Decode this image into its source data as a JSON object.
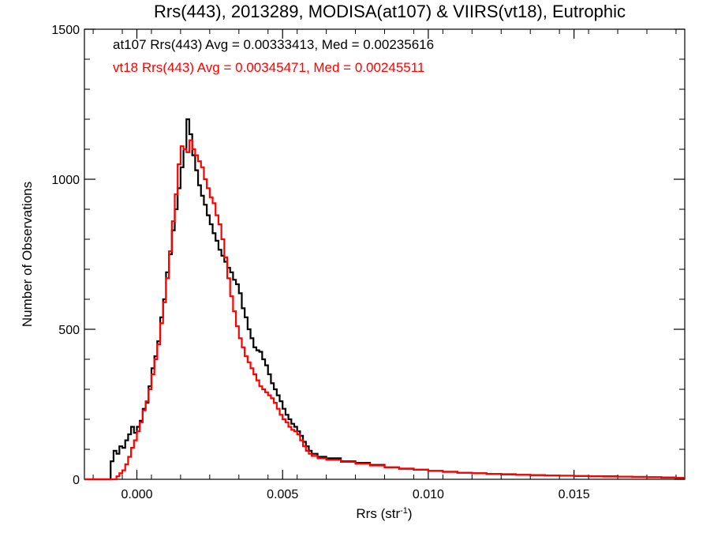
{
  "chart_data": {
    "type": "histogram",
    "title": "Rrs(443), 2013289, MODISA(at107) & VIIRS(vt18), Eutrophic",
    "xlabel_base": "Rrs (str",
    "xlabel_sup": "-1",
    "xlabel_close": ")",
    "ylabel": "Number of Observations",
    "xlim": [
      -0.0018,
      0.0188
    ],
    "ylim": [
      0,
      1500
    ],
    "xticks": [
      0.0,
      0.005,
      0.01,
      0.015
    ],
    "xtick_labels": [
      "0.000",
      "0.005",
      "0.010",
      "0.015"
    ],
    "yticks": [
      0,
      500,
      1000,
      1500
    ],
    "ytick_labels": [
      "0",
      "500",
      "1000",
      "1500"
    ],
    "grid": false,
    "annotations": [
      {
        "text": "at107 Rrs(443) Avg = 0.00333413, Med = 0.00235616",
        "color": "#000000"
      },
      {
        "text": "vt18 Rrs(443) Avg = 0.00345471, Med = 0.00245511",
        "color": "#ff0000"
      }
    ],
    "series": [
      {
        "color": "#000000",
        "points": [
          [
            -0.0018,
            0
          ],
          [
            -0.001,
            0
          ],
          [
            -0.0009,
            60
          ],
          [
            -0.0008,
            95
          ],
          [
            -0.0007,
            85
          ],
          [
            -0.0006,
            110
          ],
          [
            -0.0005,
            105
          ],
          [
            -0.0004,
            130
          ],
          [
            -0.0003,
            150
          ],
          [
            -0.0002,
            175
          ],
          [
            -0.0001,
            155
          ],
          [
            0.0,
            175
          ],
          [
            0.0001,
            195
          ],
          [
            0.0002,
            235
          ],
          [
            0.0003,
            255
          ],
          [
            0.0004,
            310
          ],
          [
            0.0005,
            370
          ],
          [
            0.0006,
            410
          ],
          [
            0.0007,
            460
          ],
          [
            0.0008,
            540
          ],
          [
            0.0009,
            600
          ],
          [
            0.001,
            690
          ],
          [
            0.0011,
            750
          ],
          [
            0.0012,
            830
          ],
          [
            0.0013,
            900
          ],
          [
            0.0014,
            970
          ],
          [
            0.0015,
            1040
          ],
          [
            0.0016,
            1100
          ],
          [
            0.0017,
            1200
          ],
          [
            0.0018,
            1150
          ],
          [
            0.0019,
            1080
          ],
          [
            0.002,
            1030
          ],
          [
            0.0021,
            980
          ],
          [
            0.0022,
            945
          ],
          [
            0.0023,
            915
          ],
          [
            0.0024,
            880
          ],
          [
            0.0025,
            850
          ],
          [
            0.0026,
            820
          ],
          [
            0.0027,
            795
          ],
          [
            0.0028,
            765
          ],
          [
            0.0029,
            745
          ],
          [
            0.003,
            725
          ],
          [
            0.0031,
            705
          ],
          [
            0.0032,
            690
          ],
          [
            0.0033,
            665
          ],
          [
            0.0034,
            650
          ],
          [
            0.0035,
            620
          ],
          [
            0.0036,
            570
          ],
          [
            0.0037,
            540
          ],
          [
            0.0038,
            500
          ],
          [
            0.0039,
            470
          ],
          [
            0.004,
            440
          ],
          [
            0.0041,
            430
          ],
          [
            0.0042,
            425
          ],
          [
            0.0043,
            400
          ],
          [
            0.0044,
            380
          ],
          [
            0.0045,
            350
          ],
          [
            0.0046,
            320
          ],
          [
            0.0047,
            300
          ],
          [
            0.0048,
            280
          ],
          [
            0.0049,
            260
          ],
          [
            0.005,
            235
          ],
          [
            0.0051,
            215
          ],
          [
            0.0052,
            200
          ],
          [
            0.0053,
            185
          ],
          [
            0.0054,
            175
          ],
          [
            0.0055,
            160
          ],
          [
            0.0056,
            145
          ],
          [
            0.0057,
            125
          ],
          [
            0.0058,
            110
          ],
          [
            0.0059,
            95
          ],
          [
            0.006,
            85
          ],
          [
            0.0062,
            75
          ],
          [
            0.0065,
            70
          ],
          [
            0.007,
            60
          ],
          [
            0.0075,
            55
          ],
          [
            0.008,
            48
          ],
          [
            0.0085,
            40
          ],
          [
            0.009,
            35
          ],
          [
            0.0095,
            32
          ],
          [
            0.01,
            28
          ],
          [
            0.0105,
            25
          ],
          [
            0.011,
            22
          ],
          [
            0.0115,
            20
          ],
          [
            0.012,
            18
          ],
          [
            0.0125,
            17
          ],
          [
            0.013,
            15
          ],
          [
            0.0135,
            14
          ],
          [
            0.014,
            13
          ],
          [
            0.0145,
            12
          ],
          [
            0.015,
            11
          ],
          [
            0.0155,
            10
          ],
          [
            0.016,
            10
          ],
          [
            0.0165,
            9
          ],
          [
            0.017,
            8
          ],
          [
            0.0175,
            7
          ],
          [
            0.018,
            6
          ],
          [
            0.0185,
            5
          ]
        ]
      },
      {
        "color": "#ff0000",
        "points": [
          [
            -0.0018,
            0
          ],
          [
            -0.0008,
            0
          ],
          [
            -0.0007,
            10
          ],
          [
            -0.0006,
            20
          ],
          [
            -0.0005,
            30
          ],
          [
            -0.0004,
            50
          ],
          [
            -0.0003,
            75
          ],
          [
            -0.0002,
            105
          ],
          [
            -0.0001,
            130
          ],
          [
            0.0,
            160
          ],
          [
            0.0001,
            190
          ],
          [
            0.0002,
            230
          ],
          [
            0.0003,
            260
          ],
          [
            0.0004,
            300
          ],
          [
            0.0005,
            350
          ],
          [
            0.0006,
            400
          ],
          [
            0.0007,
            450
          ],
          [
            0.0008,
            520
          ],
          [
            0.0009,
            590
          ],
          [
            0.001,
            670
          ],
          [
            0.0011,
            760
          ],
          [
            0.0012,
            860
          ],
          [
            0.0013,
            950
          ],
          [
            0.0014,
            1050
          ],
          [
            0.0015,
            1110
          ],
          [
            0.0016,
            1100
          ],
          [
            0.0017,
            1090
          ],
          [
            0.0018,
            1130
          ],
          [
            0.0019,
            1100
          ],
          [
            0.002,
            1080
          ],
          [
            0.0021,
            1060
          ],
          [
            0.0022,
            1040
          ],
          [
            0.0023,
            1000
          ],
          [
            0.0024,
            970
          ],
          [
            0.0025,
            940
          ],
          [
            0.0026,
            920
          ],
          [
            0.0027,
            880
          ],
          [
            0.0028,
            850
          ],
          [
            0.0029,
            800
          ],
          [
            0.003,
            740
          ],
          [
            0.0031,
            670
          ],
          [
            0.0032,
            610
          ],
          [
            0.0033,
            560
          ],
          [
            0.0034,
            510
          ],
          [
            0.0035,
            470
          ],
          [
            0.0036,
            440
          ],
          [
            0.0037,
            410
          ],
          [
            0.0038,
            390
          ],
          [
            0.0039,
            370
          ],
          [
            0.004,
            350
          ],
          [
            0.0041,
            330
          ],
          [
            0.0042,
            310
          ],
          [
            0.0043,
            300
          ],
          [
            0.0044,
            290
          ],
          [
            0.0045,
            280
          ],
          [
            0.0046,
            270
          ],
          [
            0.0047,
            255
          ],
          [
            0.0048,
            235
          ],
          [
            0.0049,
            215
          ],
          [
            0.005,
            200
          ],
          [
            0.0051,
            190
          ],
          [
            0.0052,
            175
          ],
          [
            0.0053,
            165
          ],
          [
            0.0054,
            160
          ],
          [
            0.0055,
            150
          ],
          [
            0.0056,
            130
          ],
          [
            0.0057,
            110
          ],
          [
            0.0058,
            95
          ],
          [
            0.0059,
            85
          ],
          [
            0.006,
            78
          ],
          [
            0.0062,
            70
          ],
          [
            0.0065,
            65
          ],
          [
            0.007,
            58
          ],
          [
            0.0075,
            52
          ],
          [
            0.008,
            46
          ],
          [
            0.0085,
            40
          ],
          [
            0.009,
            36
          ],
          [
            0.0095,
            32
          ],
          [
            0.01,
            28
          ],
          [
            0.0105,
            25
          ],
          [
            0.011,
            22
          ],
          [
            0.0115,
            20
          ],
          [
            0.012,
            18
          ],
          [
            0.0125,
            16
          ],
          [
            0.013,
            15
          ],
          [
            0.0135,
            14
          ],
          [
            0.014,
            13
          ],
          [
            0.0145,
            12
          ],
          [
            0.015,
            11
          ],
          [
            0.0155,
            10
          ],
          [
            0.016,
            9
          ],
          [
            0.0165,
            9
          ],
          [
            0.017,
            8
          ],
          [
            0.0175,
            7
          ],
          [
            0.018,
            6
          ],
          [
            0.0185,
            5
          ]
        ]
      }
    ]
  }
}
